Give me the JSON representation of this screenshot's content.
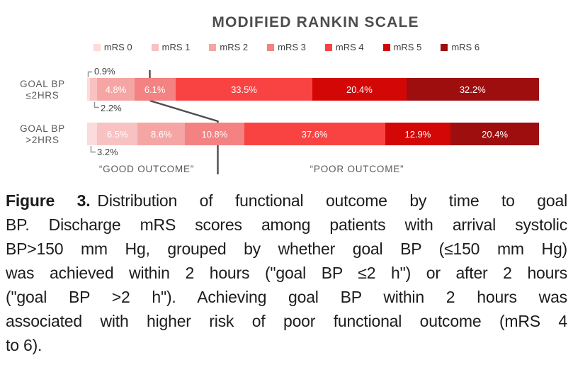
{
  "title": "MODIFIED RANKIN SCALE",
  "chart_data": {
    "type": "bar",
    "orientation": "horizontal",
    "stacked": true,
    "value_unit": "%",
    "xlim": [
      0,
      100
    ],
    "legend_position": "top",
    "categories": [
      "GOAL BP ≤2HRS",
      "GOAL BP >2HRS"
    ],
    "category_lines": [
      [
        "GOAL BP",
        "≤2HRS"
      ],
      [
        "GOAL BP",
        ">2HRS"
      ]
    ],
    "series": [
      {
        "name": "mRS 0",
        "color": "#fbdbdb",
        "values": [
          0.9,
          3.2
        ]
      },
      {
        "name": "mRS 1",
        "color": "#f8c2c2",
        "values": [
          2.2,
          6.5
        ]
      },
      {
        "name": "mRS 2",
        "color": "#f6a5a5",
        "values": [
          4.8,
          8.6
        ]
      },
      {
        "name": "mRS 3",
        "color": "#f48282",
        "values": [
          6.1,
          10.8
        ]
      },
      {
        "name": "mRS 4",
        "color": "#f94343",
        "values": [
          33.5,
          37.6
        ]
      },
      {
        "name": "mRS 5",
        "color": "#d40707",
        "values": [
          20.4,
          12.9
        ]
      },
      {
        "name": "mRS 6",
        "color": "#9e0e0e",
        "values": [
          32.2,
          20.4
        ]
      }
    ],
    "inline_label_min_pct": 4,
    "callouts": [
      {
        "category_index": 0,
        "series_index": 0,
        "value": 0.9,
        "side": "above"
      },
      {
        "category_index": 0,
        "series_index": 1,
        "value": 2.2,
        "side": "below"
      },
      {
        "category_index": 1,
        "series_index": 0,
        "value": 3.2,
        "side": "below"
      }
    ]
  },
  "annotations": {
    "good_outcome": "“GOOD OUTCOME”",
    "poor_outcome": "“POOR OUTCOME”",
    "divider_color": "#4d4d4d",
    "callout_line_color": "#8f8f8f"
  },
  "caption": {
    "figure_label": "Figure 3.",
    "lines": [
      "Distribution of functional outcome by time to goal",
      "BP. Discharge mRS scores among patients with arrival systolic",
      "BP>150 mm Hg, grouped by whether goal BP (≤150 mm Hg)",
      "was achieved within 2 hours (\"goal BP ≤2 h\") or after 2 hours",
      "(\"goal BP >2 h\"). Achieving goal BP within 2 hours was",
      "associated with higher risk of poor functional outcome (mRS 4",
      "to 6)."
    ]
  }
}
